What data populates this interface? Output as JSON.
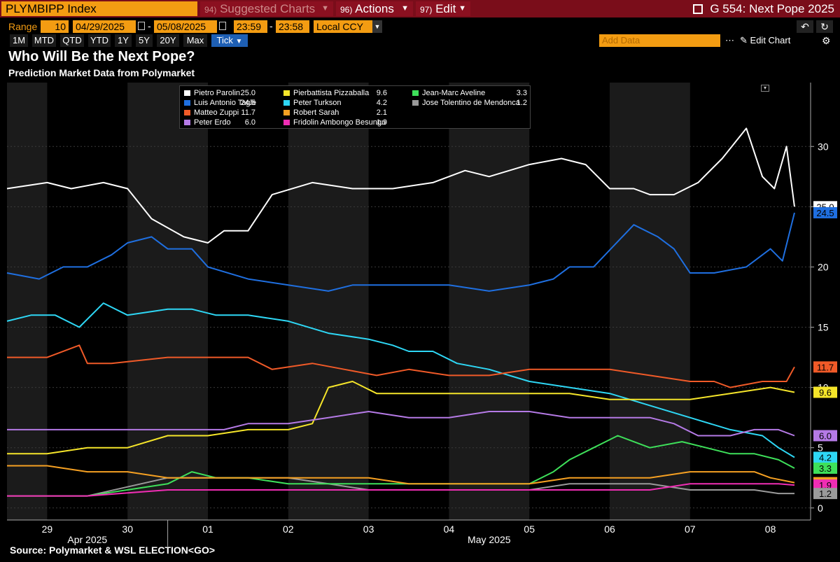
{
  "toolbar": {
    "ticker": "PLYMBIPP Index",
    "suggested_num": "94)",
    "suggested_label": "Suggested Charts",
    "actions_num": "96)",
    "actions_label": "Actions",
    "edit_num": "97)",
    "edit_label": "Edit",
    "right_title": "G 554: Next Pope 2025"
  },
  "range_row": {
    "range_label": "Range",
    "range_value": "10",
    "start_date": "04/29/2025",
    "end_date": "05/08/2025",
    "start_time": "23:59",
    "end_time": "23:58",
    "currency": "Local CCY"
  },
  "period_tabs": [
    "1M",
    "MTD",
    "QTD",
    "YTD",
    "1Y",
    "5Y",
    "20Y",
    "Max",
    "Tick"
  ],
  "active_tab": "Tick",
  "add_data_placeholder": "Add Data",
  "edit_chart_label": "Edit Chart",
  "source_text": "Source: Polymarket & WSL ELECTION<GO>",
  "colors": {
    "Pietro Parolin": "#ffffff",
    "Luis Antonio Tagle": "#1f6fe0",
    "Matteo Zuppi": "#f05a28",
    "Peter Erdo": "#b57ae6",
    "Pierbattista Pizzaballa": "#f5e52a",
    "Peter Turkson": "#2ed7f5",
    "Robert Sarah": "#f5a022",
    "Fridolin Ambongo Besungu": "#f02db4",
    "Jean-Marc Aveline": "#3ee05a",
    "Jose Tolentino de Mendonca": "#9a9a9a"
  },
  "chart_data": {
    "type": "line",
    "title": "Who Will Be the Next Pope?",
    "subtitle": "Prediction Market Data from Polymarket",
    "x_tick_labels": [
      "29",
      "30",
      "01",
      "02",
      "03",
      "04",
      "05",
      "06",
      "07",
      "08"
    ],
    "x_group_labels": [
      "Apr 2025",
      "May 2025"
    ],
    "y_ticks": [
      0,
      5,
      10,
      15,
      20,
      25,
      30
    ],
    "ylim": [
      -1,
      35.3
    ],
    "xlim": [
      0,
      10
    ],
    "grid": true,
    "legend_position": "top-left",
    "series": [
      {
        "name": "Pietro Parolin",
        "last": "25.0",
        "label": "25.0",
        "x": [
          0,
          0.5,
          0.8,
          1.2,
          1.5,
          1.8,
          2.2,
          2.5,
          2.7,
          3.0,
          3.3,
          3.8,
          4.3,
          4.8,
          5.3,
          5.7,
          6.0,
          6.5,
          6.9,
          7.2,
          7.5,
          7.8,
          8.0,
          8.3,
          8.6,
          8.9,
          9.2,
          9.4,
          9.55,
          9.7,
          9.8
        ],
        "y": [
          26.5,
          27,
          26.5,
          27,
          26.5,
          24,
          22.5,
          22,
          23,
          23,
          26,
          27,
          26.5,
          26.5,
          27,
          28,
          27.5,
          28.5,
          29,
          28.5,
          26.5,
          26.5,
          26,
          26,
          27,
          29,
          31.5,
          27.5,
          26.5,
          30,
          25
        ]
      },
      {
        "name": "Luis Antonio Tagle",
        "last": "24.5",
        "label": "24.5",
        "x": [
          0,
          0.4,
          0.7,
          1.0,
          1.3,
          1.5,
          1.8,
          2.0,
          2.3,
          2.5,
          3.0,
          3.5,
          4.0,
          4.3,
          4.8,
          5.0,
          5.5,
          6.0,
          6.5,
          6.8,
          7.0,
          7.3,
          7.8,
          8.1,
          8.3,
          8.5,
          8.8,
          9.2,
          9.5,
          9.65,
          9.8
        ],
        "y": [
          19.5,
          19,
          20,
          20,
          21,
          22,
          22.5,
          21.5,
          21.5,
          20,
          19,
          18.5,
          18,
          18.5,
          18.5,
          18.5,
          18.5,
          18,
          18.5,
          19,
          20,
          20,
          23.5,
          22.5,
          21.5,
          19.5,
          19.5,
          20,
          21.5,
          20.5,
          24.5
        ]
      },
      {
        "name": "Matteo Zuppi",
        "last": "11.7",
        "label": "11.7",
        "x": [
          0,
          0.5,
          0.9,
          1.0,
          1.3,
          2.0,
          2.5,
          3.0,
          3.3,
          3.8,
          4.2,
          4.6,
          5.0,
          5.5,
          6.0,
          6.5,
          7.0,
          7.5,
          8.0,
          8.5,
          8.8,
          9.0,
          9.4,
          9.7,
          9.8
        ],
        "y": [
          12.5,
          12.5,
          13.5,
          12,
          12,
          12.5,
          12.5,
          12.5,
          11.5,
          12,
          11.5,
          11,
          11.5,
          11,
          11,
          11.5,
          11.5,
          11.5,
          11,
          10.5,
          10.5,
          10,
          10.5,
          10.5,
          11.7
        ]
      },
      {
        "name": "Peter Erdo",
        "last": "6.0",
        "label": "6.0",
        "x": [
          0,
          1.0,
          2.0,
          2.7,
          3.0,
          3.5,
          4.0,
          4.5,
          5.0,
          5.5,
          6.0,
          6.5,
          7.0,
          7.5,
          8.0,
          8.3,
          8.6,
          9.0,
          9.3,
          9.6,
          9.8
        ],
        "y": [
          6.5,
          6.5,
          6.5,
          6.5,
          7,
          7,
          7.5,
          8,
          7.5,
          7.5,
          8,
          8,
          7.5,
          7.5,
          7.5,
          7,
          6,
          6,
          6.5,
          6.5,
          6.0
        ]
      },
      {
        "name": "Pierbattista Pizzaballa",
        "last": "9.6",
        "label": "9.6",
        "x": [
          0,
          0.5,
          1.0,
          1.5,
          2.0,
          2.5,
          3.0,
          3.5,
          3.8,
          4.0,
          4.3,
          4.6,
          5.0,
          5.5,
          6.0,
          6.5,
          7.0,
          7.5,
          8.0,
          8.5,
          9.0,
          9.5,
          9.8
        ],
        "y": [
          4.5,
          4.5,
          5,
          5,
          6,
          6,
          6.5,
          6.5,
          7,
          10,
          10.5,
          9.5,
          9.5,
          9.5,
          9.5,
          9.5,
          9.5,
          9,
          9,
          9,
          9.5,
          10,
          9.6
        ]
      },
      {
        "name": "Peter Turkson",
        "last": "4.2",
        "label": "4.2",
        "x": [
          0,
          0.3,
          0.6,
          0.9,
          1.2,
          1.5,
          2.0,
          2.3,
          2.6,
          3.0,
          3.5,
          4.0,
          4.5,
          4.8,
          5.0,
          5.3,
          5.6,
          6.0,
          6.5,
          7.0,
          7.5,
          8.0,
          8.5,
          9.0,
          9.4,
          9.6,
          9.8
        ],
        "y": [
          15.5,
          16,
          16,
          15,
          17,
          16,
          16.5,
          16.5,
          16,
          16,
          15.5,
          14.5,
          14,
          13.5,
          13,
          13,
          12,
          11.5,
          10.5,
          10,
          9.5,
          8.5,
          7.5,
          6.5,
          6,
          5,
          4.2
        ]
      },
      {
        "name": "Robert Sarah",
        "last": "2.1",
        "label": "2.1",
        "x": [
          0,
          0.5,
          1.0,
          1.5,
          2.0,
          2.5,
          3.0,
          3.5,
          4.0,
          4.5,
          5.0,
          5.5,
          6.0,
          6.5,
          7.0,
          7.5,
          8.0,
          8.5,
          9.0,
          9.3,
          9.5,
          9.8
        ],
        "y": [
          3.5,
          3.5,
          3,
          3,
          2.5,
          2.5,
          2.5,
          2.5,
          2.5,
          2.5,
          2,
          2,
          2,
          2,
          2.5,
          2.5,
          2.5,
          3,
          3,
          3,
          2.5,
          2.1
        ]
      },
      {
        "name": "Fridolin Ambongo Besungu",
        "last": "1.9",
        "label": "1.9",
        "x": [
          0,
          1.0,
          2.0,
          3.0,
          4.0,
          5.0,
          6.0,
          7.0,
          8.0,
          8.5,
          9.0,
          9.3,
          9.6,
          9.8
        ],
        "y": [
          1,
          1,
          1.5,
          1.5,
          1.5,
          1.5,
          1.5,
          1.5,
          1.5,
          2,
          2,
          2,
          2,
          1.9
        ]
      },
      {
        "name": "Jean-Marc Aveline",
        "last": "3.3",
        "label": "3.3",
        "x": [
          0,
          1.0,
          2.0,
          2.3,
          2.6,
          3.0,
          3.5,
          4.0,
          4.5,
          5.0,
          5.5,
          6.0,
          6.5,
          6.8,
          7.0,
          7.3,
          7.6,
          8.0,
          8.4,
          8.7,
          9.0,
          9.3,
          9.6,
          9.8
        ],
        "y": [
          1,
          1,
          2,
          3,
          2.5,
          2.5,
          2,
          2,
          2,
          2,
          2,
          2,
          2,
          3,
          4,
          5,
          6,
          5,
          5.5,
          5,
          4.5,
          4.5,
          4,
          3.3
        ]
      },
      {
        "name": "Jose Tolentino de Mendonca",
        "last": "1.2",
        "label": "1.2",
        "x": [
          0,
          1.0,
          2.0,
          2.5,
          3.0,
          3.5,
          4.0,
          4.5,
          5.0,
          5.5,
          6.0,
          6.5,
          7.0,
          7.5,
          8.0,
          8.5,
          9.0,
          9.3,
          9.6,
          9.8
        ],
        "y": [
          1,
          1,
          2.5,
          2.5,
          2.5,
          2.5,
          2,
          1.5,
          1.5,
          1.5,
          1.5,
          1.5,
          2,
          2,
          2,
          1.5,
          1.5,
          1.5,
          1.2,
          1.2
        ]
      }
    ]
  }
}
